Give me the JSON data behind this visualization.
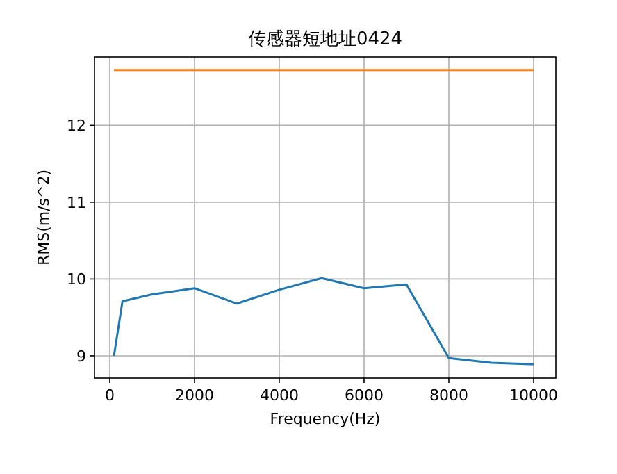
{
  "chart_data": {
    "type": "line",
    "title": "传感器短地址0424",
    "xlabel": "Frequency(Hz)",
    "ylabel": "RMS(m/s^2)",
    "series": [
      {
        "color": "#1f77b4",
        "x": [
          100,
          300,
          1000,
          2000,
          3000,
          4000,
          5000,
          6000,
          7000,
          8000,
          9000,
          10000
        ],
        "values": [
          9.0,
          9.71,
          9.8,
          9.88,
          9.68,
          9.86,
          10.01,
          9.88,
          9.93,
          8.97,
          8.91,
          8.89
        ]
      },
      {
        "color": "#ff7f0e",
        "x": [
          100,
          10000
        ],
        "values": [
          12.72,
          12.72
        ]
      }
    ],
    "xlim": [
      -360,
      10525
    ],
    "ylim": [
      8.71,
      12.89
    ],
    "xticks": [
      0,
      2000,
      4000,
      6000,
      8000,
      10000
    ],
    "yticks": [
      9,
      10,
      11,
      12
    ],
    "grid": true,
    "line_style": "solid",
    "marker": "none"
  }
}
